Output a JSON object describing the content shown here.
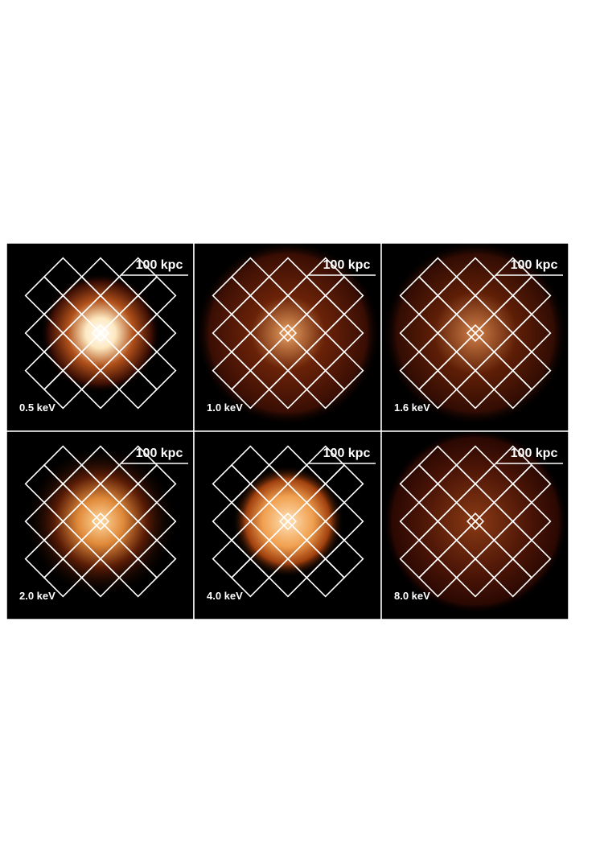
{
  "figure": {
    "panels": [
      {
        "energy": "0.5 keV",
        "scale_bar": "100 kpc"
      },
      {
        "energy": "1.0 keV",
        "scale_bar": "100 kpc"
      },
      {
        "energy": "1.6 keV",
        "scale_bar": "100 kpc"
      },
      {
        "energy": "2.0 keV",
        "scale_bar": "100 kpc"
      },
      {
        "energy": "4.0 keV",
        "scale_bar": "100 kpc"
      },
      {
        "energy": "8.0 keV",
        "scale_bar": "100 kpc"
      }
    ]
  }
}
